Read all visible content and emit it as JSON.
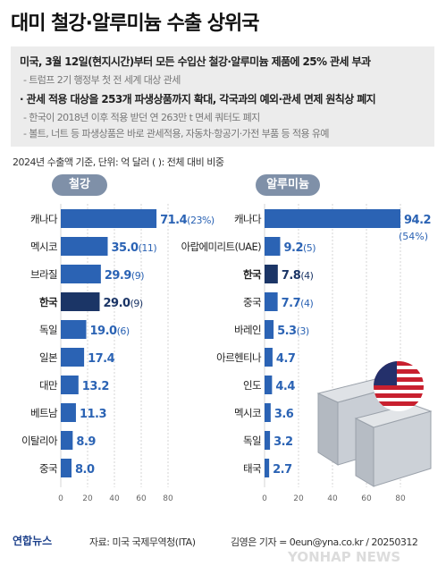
{
  "title": "대미 철강·알루미늄 수출 상위국",
  "info": {
    "line1": "미국, 3월 12일(현지시간)부터 모든 수입산 철강·알루미늄 제품에 25% 관세 부과",
    "line2": "- 트럼프 2기 행정부 첫 전 세계 대상 관세",
    "line3": "· 관세 적용 대상을 253개 파생상품까지 확대, 각국과의 예외·관세 면제 원칙상 폐지",
    "line4": "- 한국이 2018년 이후 적용 받던 연 263만 t 면세 쿼터도 폐지",
    "line5": "- 볼트, 너트 등 파생상품은 바로 관세적용, 자동차·항공기·가전 부품 등 적용 유예"
  },
  "unit_note": "2024년 수출액 기준, 단위: 억 달러  ( ): 전체 대비 비중",
  "footer": {
    "logo": "연합뉴스",
    "source": "자료: 미국 국제무역청(ITA)",
    "credit": "김영은 기자 = 0eun@yna.co.kr / 20250312",
    "watermark": "YONHAP NEWS"
  },
  "colors": {
    "bar": "#2b63b4",
    "highlight_bar": "#1b3566",
    "value_text": "#2b63b4",
    "highlight_text": "#1b3566",
    "pill": "#7f90a8"
  },
  "chart_data": [
    {
      "type": "bar",
      "orientation": "horizontal",
      "title": "철강",
      "categories": [
        "캐나다",
        "멕시코",
        "브라질",
        "한국",
        "독일",
        "일본",
        "대만",
        "베트남",
        "이탈리아",
        "중국"
      ],
      "values": [
        71.4,
        35.0,
        29.9,
        29.0,
        19.0,
        17.4,
        13.2,
        11.3,
        8.9,
        8.0
      ],
      "value_labels": [
        "71.4",
        "35.0",
        "29.9",
        "29.0",
        "19.0",
        "17.4",
        "13.2",
        "11.3",
        "8.9",
        "8.0"
      ],
      "shares": [
        "(23%)",
        "(11)",
        "(9)",
        "(9)",
        "(6)",
        "",
        "",
        "",
        "",
        ""
      ],
      "highlight": "한국",
      "xlim": [
        0,
        80
      ],
      "xticks": [
        "0",
        "20",
        "40",
        "60",
        "80"
      ]
    },
    {
      "type": "bar",
      "orientation": "horizontal",
      "title": "알루미늄",
      "categories": [
        "캐나다",
        "아랍에미리트(UAE)",
        "한국",
        "중국",
        "바레인",
        "아르헨티나",
        "인도",
        "멕시코",
        "독일",
        "태국"
      ],
      "values": [
        94.2,
        9.2,
        7.8,
        7.7,
        5.3,
        4.7,
        4.4,
        3.6,
        3.2,
        2.7
      ],
      "value_labels": [
        "94.2",
        "9.2",
        "7.8",
        "7.7",
        "5.3",
        "4.7",
        "4.4",
        "3.6",
        "3.2",
        "2.7"
      ],
      "shares": [
        "(54%)",
        "(5)",
        "(4)",
        "(4)",
        "(3)",
        "",
        "",
        "",
        "",
        ""
      ],
      "highlight": "한국",
      "xlim": [
        0,
        80
      ],
      "xticks": [
        "0",
        "20",
        "40",
        "60",
        "80"
      ]
    }
  ]
}
